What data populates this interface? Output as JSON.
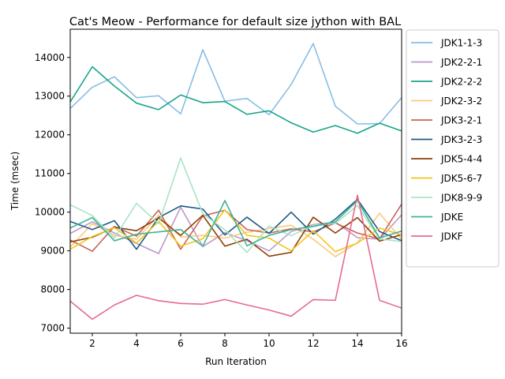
{
  "chart_data": {
    "type": "line",
    "title": "Cat's Meow - Performance for default size jython with BAL",
    "xlabel": "Run Iteration",
    "ylabel": "Time (msec)",
    "xlim": [
      1,
      16
    ],
    "ylim": [
      6870,
      14730
    ],
    "xticks": [
      2,
      4,
      6,
      8,
      10,
      12,
      14,
      16
    ],
    "yticks": [
      7000,
      8000,
      9000,
      10000,
      11000,
      12000,
      13000,
      14000
    ],
    "legend_position": "outside-right",
    "grid": false,
    "x": [
      1,
      2,
      3,
      4,
      5,
      6,
      7,
      8,
      9,
      10,
      11,
      12,
      13,
      14,
      15,
      16
    ],
    "series": [
      {
        "name": "JDK1-1-3",
        "color": "#88bde6",
        "values": [
          12680,
          13230,
          13500,
          12960,
          13010,
          12540,
          14200,
          12870,
          12940,
          12520,
          13300,
          14360,
          12740,
          12280,
          12290,
          12960
        ]
      },
      {
        "name": "JDK2-2-1",
        "color": "#bc99c7",
        "values": [
          9450,
          9750,
          9460,
          9190,
          8930,
          10130,
          9110,
          9470,
          9260,
          9000,
          9500,
          9680,
          9740,
          9340,
          9300,
          9930
        ]
      },
      {
        "name": "JDK2-2-2",
        "color": "#17a589",
        "values": [
          12850,
          13760,
          13260,
          12820,
          12650,
          13030,
          12830,
          12860,
          12530,
          12620,
          12310,
          12070,
          12240,
          12040,
          12300,
          12100
        ]
      },
      {
        "name": "JDK2-3-2",
        "color": "#fbc97c",
        "values": [
          9100,
          9700,
          9400,
          9300,
          9920,
          9360,
          9400,
          9330,
          9480,
          9580,
          9660,
          9300,
          8850,
          9210,
          9970,
          9300
        ]
      },
      {
        "name": "JDK3-2-1",
        "color": "#cb6357",
        "values": [
          9280,
          8990,
          9630,
          9380,
          10050,
          9040,
          9900,
          10050,
          9550,
          9460,
          9570,
          9490,
          9720,
          9460,
          9310,
          10210
        ]
      },
      {
        "name": "JDK3-2-3",
        "color": "#1d5b86",
        "values": [
          9760,
          9550,
          9780,
          9040,
          9860,
          10160,
          10080,
          9410,
          9870,
          9450,
          10000,
          9430,
          9820,
          10330,
          9500,
          9260
        ]
      },
      {
        "name": "JDK5-4-4",
        "color": "#8e3e06",
        "values": [
          9230,
          9350,
          9610,
          9520,
          9850,
          9400,
          9920,
          9120,
          9300,
          8860,
          8960,
          9870,
          9460,
          9860,
          9250,
          9420
        ]
      },
      {
        "name": "JDK5-6-7",
        "color": "#f5c51d",
        "values": [
          9040,
          9370,
          9600,
          9200,
          9760,
          9120,
          9310,
          10060,
          9400,
          9330,
          9000,
          9520,
          8980,
          9200,
          9590,
          9410
        ]
      },
      {
        "name": "JDK8-9-9",
        "color": "#a9e4c2",
        "values": [
          10190,
          9910,
          9330,
          10230,
          9700,
          11400,
          9960,
          9540,
          8960,
          9640,
          9390,
          9660,
          9710,
          10170,
          9310,
          9240
        ]
      },
      {
        "name": "JDKE",
        "color": "#3db39a",
        "values": [
          9590,
          9860,
          9260,
          9430,
          9490,
          9550,
          9120,
          10300,
          9130,
          9400,
          9550,
          9630,
          9750,
          10300,
          9330,
          9510
        ]
      },
      {
        "name": "JDKF",
        "color": "#e66b8e",
        "values": [
          7700,
          7230,
          7600,
          7850,
          7710,
          7640,
          7620,
          7740,
          7600,
          7470,
          7310,
          7740,
          7720,
          10440,
          7720,
          7520
        ]
      }
    ]
  }
}
